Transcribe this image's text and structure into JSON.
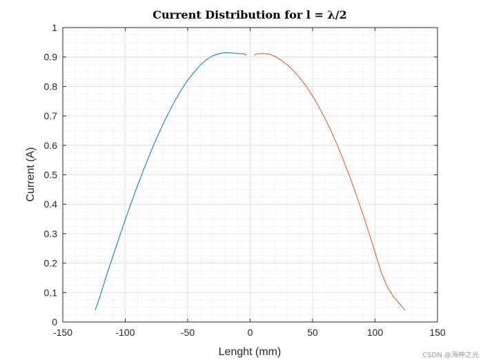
{
  "chart_data": {
    "type": "line",
    "title": "Current Distribution for l = λ/2",
    "xlabel": "Lenght (mm)",
    "ylabel": "Current (A)",
    "xlim": [
      -150,
      150
    ],
    "ylim": [
      0,
      1
    ],
    "xticks": [
      -150,
      -100,
      -50,
      0,
      50,
      100,
      150
    ],
    "yticks": [
      0,
      0.1,
      0.2,
      0.3,
      0.4,
      0.5,
      0.6,
      0.7,
      0.8,
      0.9,
      1
    ],
    "xtick_labels": [
      "-150",
      "-100",
      "-50",
      "0",
      "50",
      "100",
      "150"
    ],
    "ytick_labels": [
      "0",
      "0.1",
      "0.2",
      "0.3",
      "0.4",
      "0.5",
      "0.6",
      "0.7",
      "0.8",
      "0.9",
      "1"
    ],
    "grid": true,
    "minor_grid": true,
    "series": [
      {
        "color": "#0072BD",
        "x": [
          -124,
          -120,
          -115,
          -110,
          -105,
          -100,
          -95,
          -90,
          -85,
          -80,
          -75,
          -70,
          -65,
          -60,
          -55,
          -50,
          -45,
          -40,
          -35,
          -30,
          -25,
          -20,
          -15,
          -10,
          -5,
          -3
        ],
        "y": [
          0.04,
          0.09,
          0.158,
          0.222,
          0.285,
          0.347,
          0.407,
          0.465,
          0.52,
          0.573,
          0.623,
          0.67,
          0.713,
          0.753,
          0.789,
          0.821,
          0.848,
          0.872,
          0.891,
          0.904,
          0.911,
          0.915,
          0.914,
          0.912,
          0.911,
          0.906
        ]
      },
      {
        "color": "#D95319",
        "x": [
          3,
          5,
          10,
          15,
          20,
          25,
          30,
          35,
          40,
          45,
          50,
          55,
          60,
          65,
          70,
          75,
          80,
          85,
          90,
          95,
          100,
          105,
          110,
          115,
          120,
          124
        ],
        "y": [
          0.906,
          0.911,
          0.912,
          0.91,
          0.902,
          0.889,
          0.873,
          0.852,
          0.828,
          0.8,
          0.768,
          0.731,
          0.691,
          0.647,
          0.599,
          0.547,
          0.491,
          0.432,
          0.37,
          0.305,
          0.237,
          0.168,
          0.118,
          0.085,
          0.06,
          0.04
        ]
      }
    ]
  },
  "watermark": "CSDN @海神之光"
}
